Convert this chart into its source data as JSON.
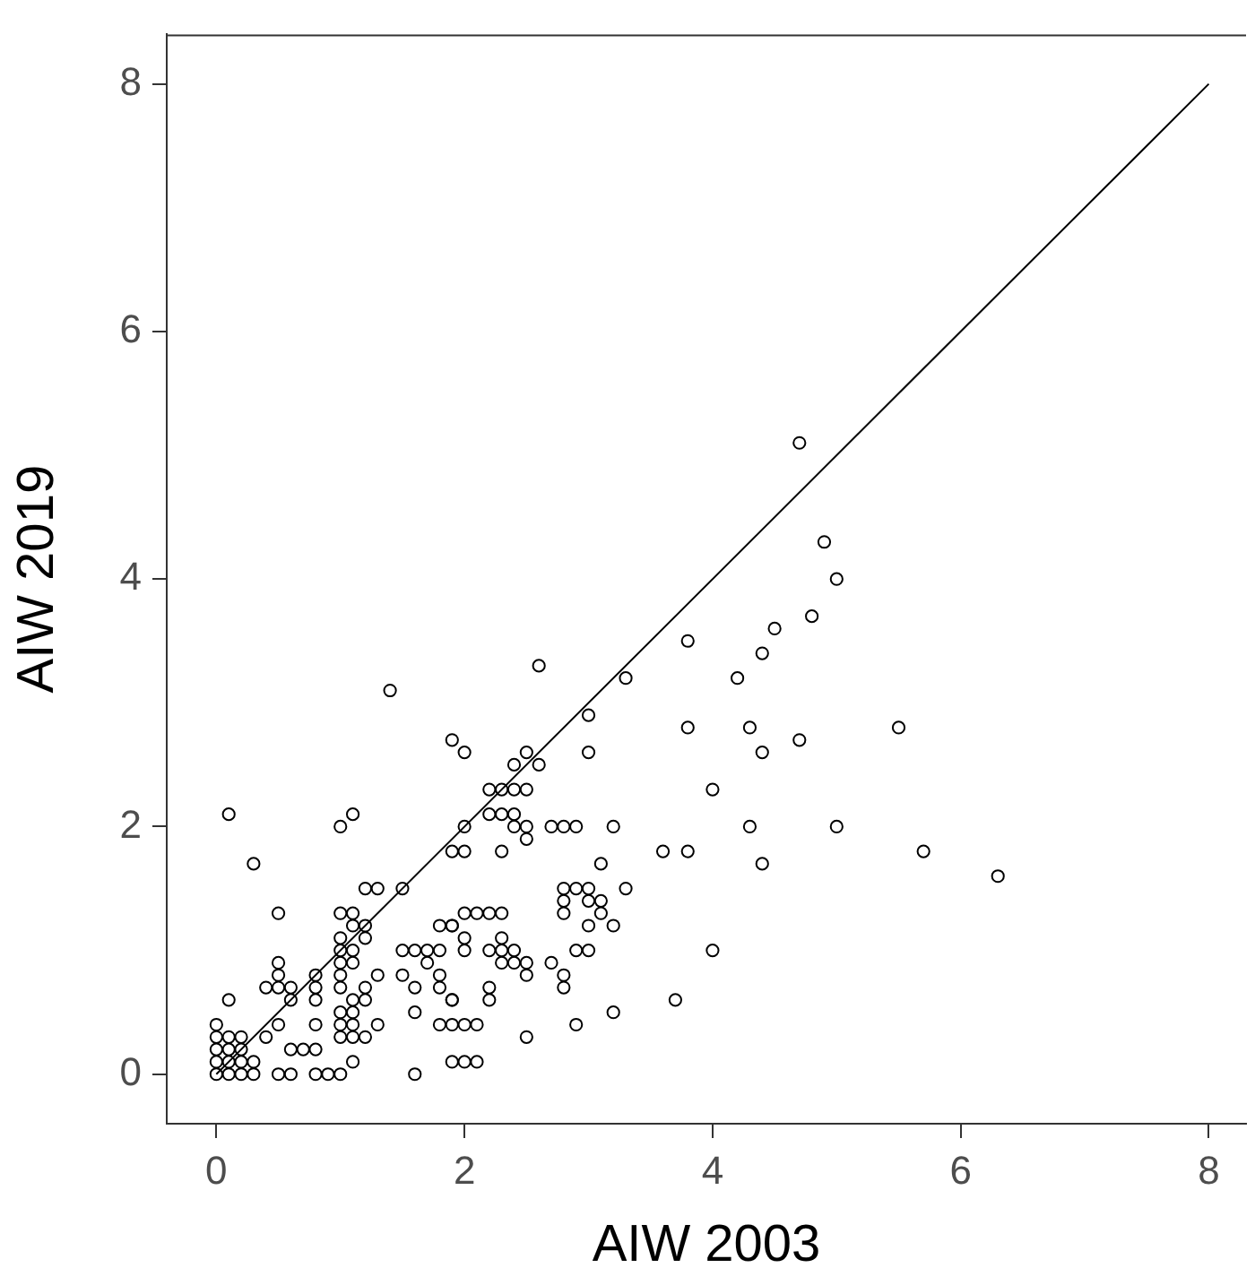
{
  "chart_data": {
    "type": "scatter",
    "xlabel": "AIW 2003",
    "ylabel": "AIW 2019",
    "xlim": [
      -0.4,
      8.3
    ],
    "ylim": [
      -0.4,
      8.4
    ],
    "xticks": [
      0,
      2,
      4,
      6,
      8
    ],
    "yticks": [
      0,
      2,
      4,
      6,
      8
    ],
    "grid": false,
    "legend": false,
    "marker": "circle",
    "series": [
      {
        "color": "#000000",
        "x": [
          4.7,
          4.9,
          5.0,
          4.8,
          4.5,
          4.4,
          3.8,
          4.2,
          3.3,
          2.6,
          1.4,
          5.5,
          4.3,
          3.8,
          4.7,
          4.4,
          3.0,
          3.0,
          1.9,
          2.0,
          2.5,
          2.4,
          2.6,
          2.2,
          2.3,
          2.4,
          2.5,
          4.0,
          2.2,
          2.3,
          2.4,
          2.4,
          2.5,
          2.5,
          2.7,
          2.8,
          2.9,
          3.2,
          2.0,
          1.9,
          2.0,
          2.3,
          3.6,
          3.8,
          4.3,
          5.0,
          4.4,
          5.7,
          6.3,
          3.1,
          2.8,
          2.9,
          3.0,
          3.3,
          2.8,
          3.0,
          3.1,
          2.8,
          3.1,
          3.0,
          3.2,
          2.0,
          2.1,
          2.2,
          2.3,
          1.9,
          2.0,
          2.0,
          2.2,
          2.3,
          2.3,
          2.4,
          2.3,
          2.4,
          2.5,
          2.5,
          2.7,
          2.8,
          2.8,
          2.9,
          3.0,
          4.0,
          2.2,
          2.2,
          1.9,
          3.7,
          2.0,
          2.1,
          2.9,
          2.5,
          3.2,
          1.9,
          2.0,
          2.1,
          0.1,
          1.0,
          1.1,
          0.3,
          1.2,
          1.3,
          1.5,
          0.5,
          1.0,
          1.1,
          1.1,
          1.2,
          1.2,
          1.8,
          1.9,
          1.0,
          1.1,
          1.0,
          1.0,
          1.1,
          1.5,
          1.6,
          1.7,
          1.8,
          1.7,
          0.5,
          0.5,
          0.4,
          0.5,
          0.6,
          0.8,
          0.8,
          1.0,
          1.0,
          0.6,
          0.8,
          1.1,
          1.2,
          0.1,
          1.2,
          1.3,
          1.5,
          1.6,
          1.8,
          1.8,
          1.9,
          0.5,
          0.8,
          1.0,
          1.1,
          1.0,
          1.1,
          1.2,
          1.0,
          1.1,
          1.3,
          1.6,
          1.8,
          1.9,
          0.6,
          0.7,
          0.8,
          0.4,
          1.1,
          1.6,
          0.0,
          0.1,
          0.2,
          0.3,
          0.5,
          0.6,
          0.8,
          0.9,
          1.0,
          0.0,
          0.0,
          0.0,
          0.0,
          0.1,
          0.1,
          0.1,
          0.2,
          0.2,
          0.2,
          0.3
        ],
        "values": [
          5.1,
          4.3,
          4.0,
          3.7,
          3.6,
          3.4,
          3.5,
          3.2,
          3.2,
          3.3,
          3.1,
          2.8,
          2.8,
          2.8,
          2.7,
          2.6,
          2.9,
          2.6,
          2.7,
          2.6,
          2.6,
          2.5,
          2.5,
          2.3,
          2.3,
          2.3,
          2.3,
          2.3,
          2.1,
          2.1,
          2.1,
          2.0,
          2.0,
          1.9,
          2.0,
          2.0,
          2.0,
          2.0,
          2.0,
          1.8,
          1.8,
          1.8,
          1.8,
          1.8,
          2.0,
          2.0,
          1.7,
          1.8,
          1.6,
          1.7,
          1.5,
          1.5,
          1.5,
          1.5,
          1.4,
          1.4,
          1.4,
          1.3,
          1.3,
          1.2,
          1.2,
          1.3,
          1.3,
          1.3,
          1.3,
          1.2,
          1.1,
          1.0,
          1.0,
          1.1,
          1.0,
          1.0,
          0.9,
          0.9,
          0.9,
          0.8,
          0.9,
          0.8,
          0.7,
          1.0,
          1.0,
          1.0,
          0.7,
          0.6,
          0.6,
          0.6,
          0.4,
          0.4,
          0.4,
          0.3,
          0.5,
          0.1,
          0.1,
          0.1,
          2.1,
          2.0,
          2.1,
          1.7,
          1.5,
          1.5,
          1.5,
          1.3,
          1.3,
          1.3,
          1.2,
          1.2,
          1.1,
          1.2,
          1.2,
          1.0,
          1.0,
          1.1,
          0.9,
          0.9,
          1.0,
          1.0,
          1.0,
          1.0,
          0.9,
          0.9,
          0.8,
          0.7,
          0.7,
          0.7,
          0.8,
          0.7,
          0.8,
          0.7,
          0.6,
          0.6,
          0.6,
          0.6,
          0.6,
          0.7,
          0.8,
          0.8,
          0.7,
          0.8,
          0.7,
          0.6,
          0.4,
          0.4,
          0.5,
          0.5,
          0.4,
          0.4,
          0.3,
          0.3,
          0.3,
          0.4,
          0.5,
          0.4,
          0.4,
          0.2,
          0.2,
          0.2,
          0.3,
          0.1,
          0.0,
          0.0,
          0.0,
          0.0,
          0.0,
          0.0,
          0.0,
          0.0,
          0.0,
          0.0,
          0.4,
          0.3,
          0.2,
          0.1,
          0.3,
          0.2,
          0.1,
          0.3,
          0.2,
          0.1,
          0.1
        ]
      },
      {
        "type": "line",
        "marker": "none",
        "color": "#000000",
        "x": [
          0,
          8
        ],
        "values": [
          0,
          8
        ]
      }
    ]
  }
}
